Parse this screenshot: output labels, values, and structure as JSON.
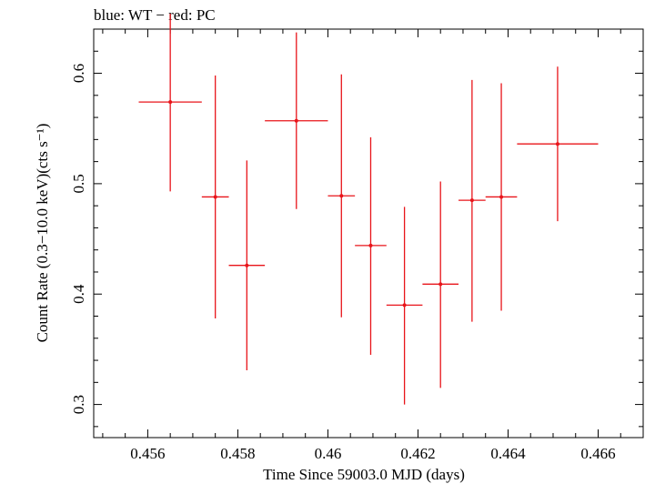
{
  "chart_data": {
    "type": "scatter",
    "title": "blue: WT − red: PC",
    "xlabel": "Time Since 59003.0 MJD (days)",
    "ylabel": "Count Rate (0.3−10.0 keV)(cts s⁻¹)",
    "xlim": [
      0.4548,
      0.467
    ],
    "ylim": [
      0.27,
      0.64
    ],
    "x_ticks": [
      0.456,
      0.458,
      0.46,
      0.462,
      0.464,
      0.466
    ],
    "x_tick_labels": [
      "0.456",
      "0.458",
      "0.46",
      "0.462",
      "0.464",
      "0.466"
    ],
    "y_ticks": [
      0.3,
      0.4,
      0.5,
      0.6
    ],
    "y_tick_labels": [
      "0.3",
      "0.4",
      "0.5",
      "0.6"
    ],
    "grid": false,
    "series": [
      {
        "color": "#e8141a",
        "points": [
          {
            "x": 0.4565,
            "xerr": 0.0007,
            "y": 0.574,
            "yerr_low": 0.081,
            "yerr_high": 0.08
          },
          {
            "x": 0.4575,
            "xerr": 0.0003,
            "y": 0.488,
            "yerr_low": 0.11,
            "yerr_high": 0.11
          },
          {
            "x": 0.4582,
            "xerr": 0.0004,
            "y": 0.426,
            "yerr_low": 0.095,
            "yerr_high": 0.095
          },
          {
            "x": 0.4593,
            "xerr": 0.0007,
            "y": 0.557,
            "yerr_low": 0.08,
            "yerr_high": 0.08
          },
          {
            "x": 0.4603,
            "xerr": 0.0003,
            "y": 0.489,
            "yerr_low": 0.11,
            "yerr_high": 0.11
          },
          {
            "x": 0.46095,
            "xerr": 0.00035,
            "y": 0.444,
            "yerr_low": 0.099,
            "yerr_high": 0.098
          },
          {
            "x": 0.4617,
            "xerr": 0.0004,
            "y": 0.39,
            "yerr_low": 0.09,
            "yerr_high": 0.089
          },
          {
            "x": 0.4625,
            "xerr": 0.0004,
            "y": 0.409,
            "yerr_low": 0.094,
            "yerr_high": 0.093
          },
          {
            "x": 0.4632,
            "xerr": 0.0003,
            "y": 0.485,
            "yerr_low": 0.11,
            "yerr_high": 0.109
          },
          {
            "x": 0.46385,
            "xerr": 0.00035,
            "y": 0.488,
            "yerr_low": 0.103,
            "yerr_high": 0.103
          },
          {
            "x": 0.4651,
            "xerr": 0.0009,
            "y": 0.536,
            "yerr_low": 0.07,
            "yerr_high": 0.07
          }
        ]
      }
    ]
  }
}
